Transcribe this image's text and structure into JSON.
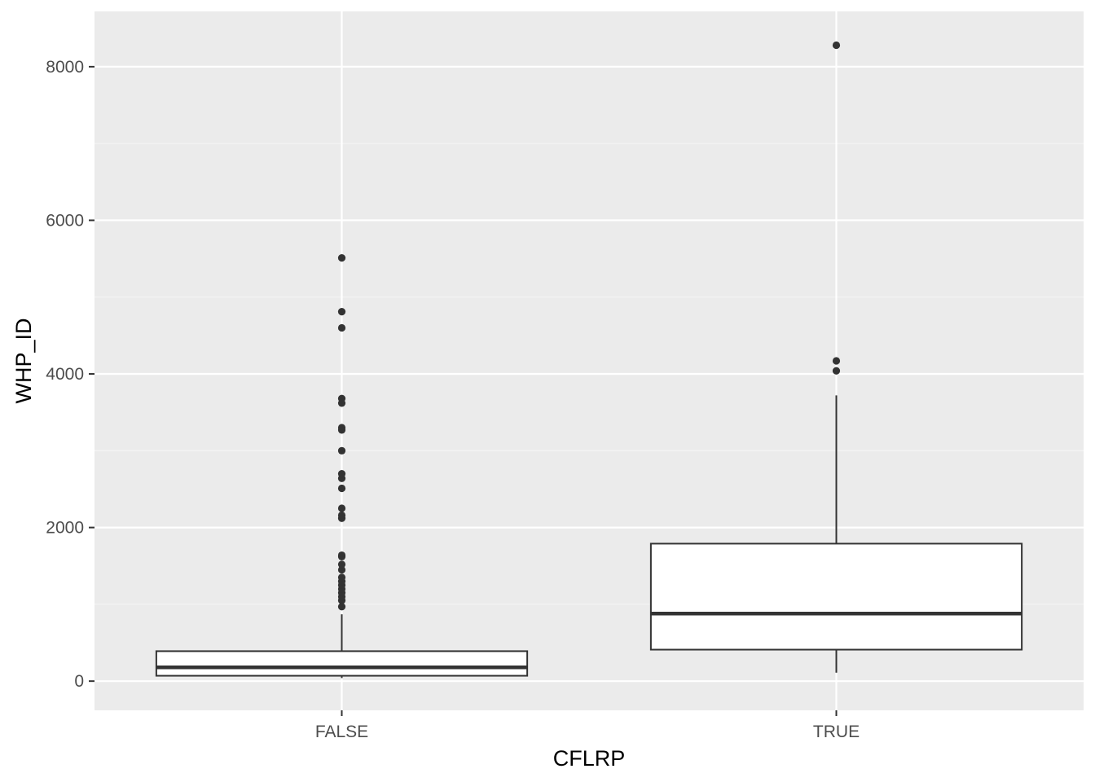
{
  "chart_data": {
    "type": "boxplot",
    "xlabel": "CFLRP",
    "ylabel": "WHP_ID",
    "categories": [
      "FALSE",
      "TRUE"
    ],
    "ylim": [
      -380,
      8720
    ],
    "yticks": [
      0,
      2000,
      4000,
      6000,
      8000
    ],
    "ytick_labels": [
      "0",
      "2000",
      "4000",
      "6000",
      "8000"
    ],
    "grid": true,
    "legend": "none",
    "boxes": [
      {
        "category": "FALSE",
        "lower_whisker": 40,
        "q1": 70,
        "median": 180,
        "q3": 390,
        "upper_whisker": 870,
        "outliers": [
          970,
          1050,
          1100,
          1150,
          1200,
          1250,
          1300,
          1350,
          1450,
          1520,
          1620,
          1640,
          2120,
          2160,
          2250,
          2510,
          2640,
          2700,
          3000,
          3270,
          3300,
          3620,
          3680,
          4600,
          4810,
          5510
        ]
      },
      {
        "category": "TRUE",
        "lower_whisker": 110,
        "q1": 410,
        "median": 880,
        "q3": 1790,
        "upper_whisker": 3720,
        "outliers": [
          4040,
          4170,
          8280
        ]
      }
    ],
    "colors": {
      "panel_background": "#ebebeb",
      "grid_major": "#ffffff",
      "grid_minor": "#f5f5f5",
      "box_fill": "#ffffff",
      "box_line": "#333333",
      "point": "#333333",
      "tick": "#333333",
      "tick_label": "#4d4d4d",
      "axis_title": "#000000"
    }
  }
}
